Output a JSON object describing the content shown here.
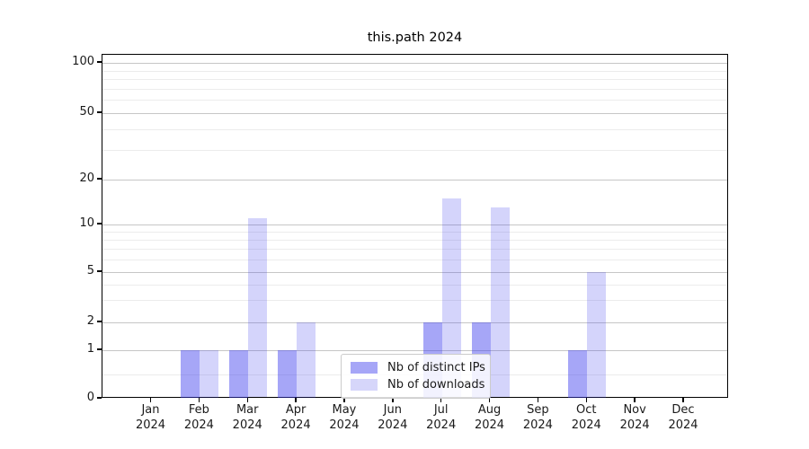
{
  "chart_data": {
    "type": "bar",
    "title": "this.path 2024",
    "categories": [
      "Jan 2024",
      "Feb 2024",
      "Mar 2024",
      "Apr 2024",
      "May 2024",
      "Jun 2024",
      "Jul 2024",
      "Aug 2024",
      "Sep 2024",
      "Oct 2024",
      "Nov 2024",
      "Dec 2024"
    ],
    "months": [
      "Jan",
      "Feb",
      "Mar",
      "Apr",
      "May",
      "Jun",
      "Jul",
      "Aug",
      "Sep",
      "Oct",
      "Nov",
      "Dec"
    ],
    "year": "2024",
    "series": [
      {
        "name": "Nb of distinct IPs",
        "color": "#a6a6f7",
        "values": [
          0,
          1,
          1,
          1,
          0,
          0,
          2,
          2,
          0,
          1,
          0,
          0
        ]
      },
      {
        "name": "Nb of downloads",
        "color": "#d6d6fa",
        "values": [
          0,
          1,
          11,
          2,
          0,
          0,
          15,
          13,
          0,
          5,
          0,
          0
        ]
      }
    ],
    "yscale": "log-like with linear zero segment",
    "yticks": [
      0,
      1,
      2,
      5,
      10,
      20,
      50,
      100
    ],
    "minor_yticks": [
      0.5,
      3,
      4,
      6,
      7,
      8,
      9,
      30,
      40,
      60,
      70,
      80,
      90
    ],
    "ylim": [
      0,
      105
    ],
    "xlabel": "",
    "ylabel": "",
    "grid": "horizontal-only",
    "legend_position": "inside-bottom-center"
  }
}
